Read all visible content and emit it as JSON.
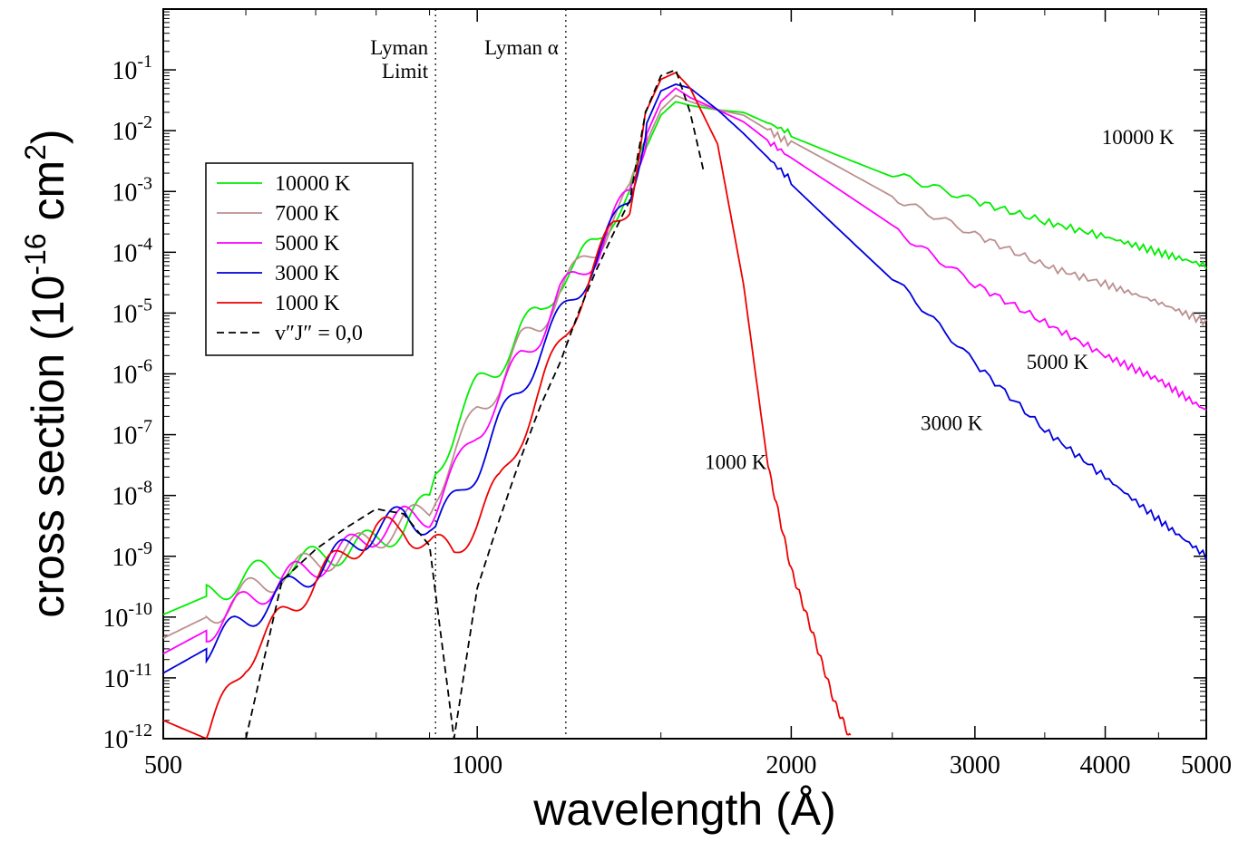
{
  "chart_data": {
    "type": "line",
    "xlabel": "wavelength (Å)",
    "ylabel_prefix": "cross section (10",
    "ylabel_exp": "-16",
    "ylabel_unit": " cm",
    "ylabel_unit_exp": "2",
    "ylabel_suffix": ")",
    "x_scale": "log",
    "y_scale": "log",
    "xlim": [
      500,
      5000
    ],
    "ylim": [
      1e-12,
      1
    ],
    "x_ticks": [
      {
        "value": 500,
        "label": "500"
      },
      {
        "value": 1000,
        "label": "1000"
      },
      {
        "value": 2000,
        "label": "2000"
      },
      {
        "value": 3000,
        "label": "3000"
      },
      {
        "value": 4000,
        "label": "4000"
      },
      {
        "value": 5000,
        "label": "5000"
      }
    ],
    "y_ticks": [
      {
        "value": 1e-12,
        "base": "10",
        "exp": "-12"
      },
      {
        "value": 1e-11,
        "base": "10",
        "exp": "-11"
      },
      {
        "value": 1e-10,
        "base": "10",
        "exp": "-10"
      },
      {
        "value": 1e-09,
        "base": "10",
        "exp": "-9"
      },
      {
        "value": 1e-08,
        "base": "10",
        "exp": "-8"
      },
      {
        "value": 1e-07,
        "base": "10",
        "exp": "-7"
      },
      {
        "value": 1e-06,
        "base": "10",
        "exp": "-6"
      },
      {
        "value": 1e-05,
        "base": "10",
        "exp": "-5"
      },
      {
        "value": 0.0001,
        "base": "10",
        "exp": "-4"
      },
      {
        "value": 0.001,
        "base": "10",
        "exp": "-3"
      },
      {
        "value": 0.01,
        "base": "10",
        "exp": "-2"
      },
      {
        "value": 0.1,
        "base": "10",
        "exp": "-1"
      }
    ],
    "vlines": [
      {
        "x": 912,
        "label_lines": [
          "Lyman",
          "Limit"
        ]
      },
      {
        "x": 1216,
        "label_lines": [
          "Lyman α"
        ]
      }
    ],
    "annotations": [
      {
        "text": "10000 K",
        "x": 4300,
        "y": 0.006
      },
      {
        "text": "5000 K",
        "x": 3600,
        "y": 1.2e-06
      },
      {
        "text": "3000 K",
        "x": 2850,
        "y": 1.2e-07
      },
      {
        "text": "1000 K",
        "x": 1770,
        "y": 2.7e-08
      }
    ],
    "legend_position": "left",
    "series": [
      {
        "name": "10000 K",
        "color": "#00ee00",
        "dash": "solid",
        "points": [
          [
            500,
            1.1e-10
          ],
          [
            550,
            2.2e-10
          ],
          [
            600,
            4.5e-10
          ],
          [
            650,
            7e-10
          ],
          [
            700,
            9e-10
          ],
          [
            750,
            1.3e-09
          ],
          [
            800,
            1.8e-09
          ],
          [
            850,
            3e-09
          ],
          [
            900,
            8e-09
          ],
          [
            912,
            2.5e-08
          ],
          [
            960,
            1.8e-07
          ],
          [
            1000,
            6e-07
          ],
          [
            1050,
            1.5e-06
          ],
          [
            1100,
            5e-06
          ],
          [
            1150,
            1e-05
          ],
          [
            1200,
            3.5e-05
          ],
          [
            1250,
            6e-05
          ],
          [
            1300,
            0.00015
          ],
          [
            1350,
            0.00045
          ],
          [
            1400,
            0.0008
          ],
          [
            1450,
            0.005
          ],
          [
            1500,
            0.018
          ],
          [
            1550,
            0.03
          ],
          [
            1600,
            0.026
          ],
          [
            1700,
            0.022
          ],
          [
            1800,
            0.02
          ],
          [
            2000,
            0.009
          ],
          [
            2500,
            0.002
          ],
          [
            3000,
            0.0007
          ],
          [
            3500,
            0.00032
          ],
          [
            4000,
            0.00018
          ],
          [
            4500,
            0.0001
          ],
          [
            5000,
            6e-05
          ]
        ]
      },
      {
        "name": "7000 K",
        "color": "#bc8f8f",
        "dash": "solid",
        "points": [
          [
            500,
            4.5e-11
          ],
          [
            550,
            1e-10
          ],
          [
            600,
            2.5e-10
          ],
          [
            650,
            5e-10
          ],
          [
            700,
            8e-10
          ],
          [
            750,
            1.2e-09
          ],
          [
            800,
            2e-09
          ],
          [
            850,
            3.5e-09
          ],
          [
            900,
            6e-09
          ],
          [
            912,
            1.2e-08
          ],
          [
            960,
            6e-08
          ],
          [
            1000,
            2.5e-07
          ],
          [
            1050,
            7e-07
          ],
          [
            1100,
            3e-06
          ],
          [
            1150,
            7e-06
          ],
          [
            1200,
            2.5e-05
          ],
          [
            1250,
            5e-05
          ],
          [
            1300,
            0.00012
          ],
          [
            1350,
            0.0004
          ],
          [
            1400,
            0.0008
          ],
          [
            1450,
            0.006
          ],
          [
            1500,
            0.022
          ],
          [
            1550,
            0.038
          ],
          [
            1600,
            0.03
          ],
          [
            1700,
            0.022
          ],
          [
            1800,
            0.018
          ],
          [
            2000,
            0.006
          ],
          [
            2500,
            0.0008
          ],
          [
            3000,
            0.0002
          ],
          [
            3500,
            6e-05
          ],
          [
            4000,
            3e-05
          ],
          [
            4500,
            1.5e-05
          ],
          [
            5000,
            7e-06
          ]
        ]
      },
      {
        "name": "5000 K",
        "color": "#ff00ff",
        "dash": "solid",
        "points": [
          [
            500,
            2.5e-11
          ],
          [
            550,
            6e-11
          ],
          [
            600,
            1.8e-10
          ],
          [
            650,
            4e-10
          ],
          [
            700,
            7e-10
          ],
          [
            750,
            1.3e-09
          ],
          [
            800,
            2.5e-09
          ],
          [
            850,
            4e-09
          ],
          [
            900,
            5e-09
          ],
          [
            912,
            7e-09
          ],
          [
            960,
            3e-08
          ],
          [
            1000,
            1.2e-07
          ],
          [
            1050,
            4e-07
          ],
          [
            1100,
            1.8e-06
          ],
          [
            1150,
            5e-06
          ],
          [
            1200,
            2e-05
          ],
          [
            1250,
            4e-05
          ],
          [
            1300,
            0.0001
          ],
          [
            1350,
            0.00035
          ],
          [
            1400,
            0.0008
          ],
          [
            1450,
            0.008
          ],
          [
            1500,
            0.03
          ],
          [
            1550,
            0.05
          ],
          [
            1600,
            0.035
          ],
          [
            1700,
            0.022
          ],
          [
            1800,
            0.014
          ],
          [
            2000,
            0.0035
          ],
          [
            2500,
            0.00025
          ],
          [
            3000,
            3e-05
          ],
          [
            3500,
            7e-06
          ],
          [
            4000,
            2e-06
          ],
          [
            4500,
            8e-07
          ],
          [
            5000,
            2.5e-07
          ]
        ]
      },
      {
        "name": "3000 K",
        "color": "#0000dd",
        "dash": "solid",
        "points": [
          [
            500,
            1.2e-11
          ],
          [
            550,
            3e-11
          ],
          [
            600,
            9e-11
          ],
          [
            650,
            2.5e-10
          ],
          [
            700,
            6e-10
          ],
          [
            750,
            1.3e-09
          ],
          [
            800,
            2.8e-09
          ],
          [
            850,
            4.5e-09
          ],
          [
            900,
            3.5e-09
          ],
          [
            912,
            3e-09
          ],
          [
            960,
            1e-08
          ],
          [
            1000,
            3e-08
          ],
          [
            1050,
            1.5e-07
          ],
          [
            1100,
            6e-07
          ],
          [
            1150,
            2.5e-06
          ],
          [
            1200,
            8e-06
          ],
          [
            1250,
            2.5e-05
          ],
          [
            1300,
            8e-05
          ],
          [
            1350,
            0.00025
          ],
          [
            1400,
            0.0008
          ],
          [
            1450,
            0.012
          ],
          [
            1500,
            0.045
          ],
          [
            1550,
            0.058
          ],
          [
            1600,
            0.05
          ],
          [
            1700,
            0.022
          ],
          [
            1800,
            0.009
          ],
          [
            2000,
            0.0015
          ],
          [
            2500,
            4e-05
          ],
          [
            3000,
            1.5e-06
          ],
          [
            3500,
            1.2e-07
          ],
          [
            4000,
            2e-08
          ],
          [
            4500,
            4e-09
          ],
          [
            5000,
            1e-09
          ]
        ]
      },
      {
        "name": "1000 K",
        "color": "#ee0000",
        "dash": "solid",
        "points": [
          [
            500,
            2e-12
          ],
          [
            550,
            1e-12
          ],
          [
            600,
            2e-11
          ],
          [
            650,
            1e-10
          ],
          [
            700,
            4e-10
          ],
          [
            750,
            1.2e-09
          ],
          [
            800,
            2.5e-09
          ],
          [
            850,
            3e-09
          ],
          [
            900,
            1.5e-09
          ],
          [
            950,
            1.2e-09
          ],
          [
            1000,
            4e-09
          ],
          [
            1050,
            1.5e-08
          ],
          [
            1100,
            1e-07
          ],
          [
            1150,
            5e-07
          ],
          [
            1200,
            3e-06
          ],
          [
            1250,
            1.5e-05
          ],
          [
            1300,
            6e-05
          ],
          [
            1350,
            0.00025
          ],
          [
            1400,
            0.0007
          ],
          [
            1450,
            0.02
          ],
          [
            1500,
            0.07
          ],
          [
            1550,
            0.09
          ],
          [
            1600,
            0.05
          ],
          [
            1700,
            0.006
          ],
          [
            1800,
            3e-05
          ],
          [
            1900,
            3e-08
          ],
          [
            2000,
            6e-10
          ],
          [
            2100,
            5e-11
          ],
          [
            2200,
            4e-12
          ],
          [
            2280,
            1e-12
          ]
        ]
      },
      {
        "name": "v″J″ = 0,0",
        "color": "#000000",
        "dash": "dashed",
        "points": [
          [
            500,
            1e-12
          ],
          [
            550,
            1e-12
          ],
          [
            600,
            1e-12
          ],
          [
            650,
            4e-10
          ],
          [
            700,
            1.3e-09
          ],
          [
            750,
            3e-09
          ],
          [
            800,
            6e-09
          ],
          [
            850,
            5e-09
          ],
          [
            900,
            1.5e-09
          ],
          [
            950,
            1e-12
          ],
          [
            1000,
            3e-10
          ],
          [
            1050,
            4e-09
          ],
          [
            1100,
            4e-08
          ],
          [
            1150,
            3e-07
          ],
          [
            1200,
            1.5e-06
          ],
          [
            1250,
            1e-05
          ],
          [
            1300,
            5e-05
          ],
          [
            1350,
            0.0002
          ],
          [
            1400,
            0.0007
          ],
          [
            1450,
            0.02
          ],
          [
            1500,
            0.08
          ],
          [
            1550,
            0.1
          ],
          [
            1600,
            0.02
          ],
          [
            1650,
            0.002
          ]
        ]
      }
    ]
  }
}
